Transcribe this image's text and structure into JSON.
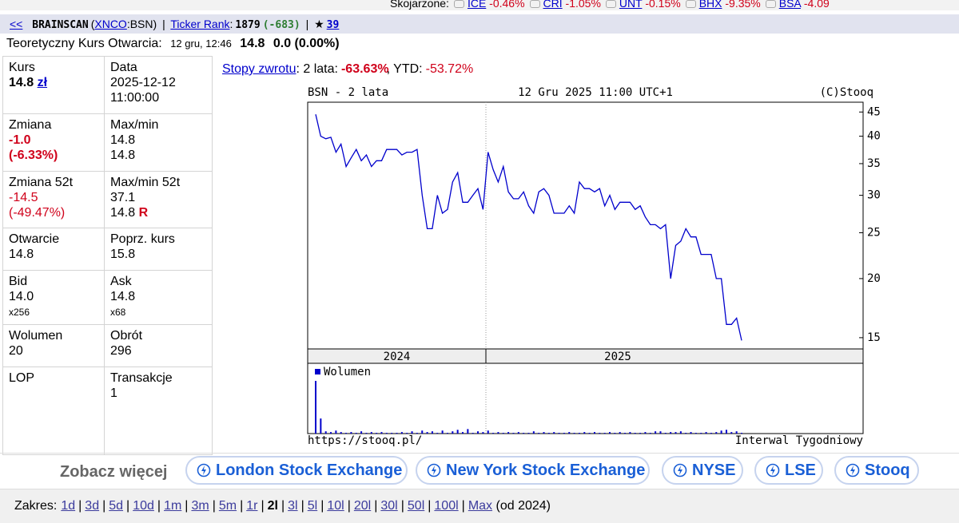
{
  "related": {
    "label": "Skojarzone:",
    "items": [
      {
        "ticker": "ICE",
        "change": "-0.46%"
      },
      {
        "ticker": "CRI",
        "change": "-1.05%"
      },
      {
        "ticker": "UNT",
        "change": "-0.15%"
      },
      {
        "ticker": "BHX",
        "change": "-9.35%"
      },
      {
        "ticker": "BSA",
        "change": "-4.09"
      }
    ]
  },
  "header": {
    "back": "<<",
    "name": "BRAINSCAN",
    "open_paren": "(",
    "exchange": "XNCO",
    "symbol": ":BSN)",
    "separator": "|",
    "rank_link": "Ticker Rank",
    "colon": ":",
    "rank": "1879",
    "rank_change": "(-683)",
    "star": "★",
    "stars": "39"
  },
  "open_line": {
    "label": "Teoretyczny Kurs Otwarcia:",
    "time": "12 gru, 12:46",
    "price": "14.8",
    "change": "0.0 (0.00%)"
  },
  "table": {
    "rows": [
      [
        {
          "label": "Kurs",
          "lines": [
            "14.8",
            "zł"
          ]
        },
        {
          "label": "Data",
          "lines": [
            "2025-12-12",
            "11:00:00"
          ]
        }
      ],
      [
        {
          "label": "Zmiana",
          "lines": [
            "-1.0",
            "(-6.33%)"
          ]
        },
        {
          "label": "Max/min",
          "lines": [
            "14.8",
            "14.8"
          ]
        }
      ],
      [
        {
          "label": "Zmiana 52t",
          "lines": [
            "-14.5",
            "(-49.47%)"
          ]
        },
        {
          "label": "Max/min 52t",
          "lines": [
            "37.1",
            "14.8",
            "R"
          ]
        }
      ],
      [
        {
          "label": "Otwarcie",
          "lines": [
            "14.8"
          ]
        },
        {
          "label": "Poprz. kurs",
          "lines": [
            "15.8"
          ]
        }
      ],
      [
        {
          "label": "Bid",
          "lines": [
            "14.0",
            "x256"
          ]
        },
        {
          "label": "Ask",
          "lines": [
            "14.8",
            "x68"
          ]
        }
      ],
      [
        {
          "label": "Wolumen",
          "lines": [
            "20"
          ]
        },
        {
          "label": "Obrót",
          "lines": [
            "296"
          ]
        }
      ],
      [
        {
          "label": "LOP",
          "lines": []
        },
        {
          "label": "Transakcje",
          "lines": [
            "1"
          ]
        }
      ]
    ]
  },
  "returns": {
    "link": "Stopy zwrotu",
    "period_label": ": 2 lata:",
    "period_value": "-63.63%",
    "ytd_label": ", YTD:",
    "ytd_value": "-53.72%"
  },
  "chart_data": {
    "type": "line",
    "title": "BSN - 2 lata",
    "subtitle": "12 Gru 2025 11:00 UTC+1",
    "copyright": "(C)Stooq",
    "log_scale": true,
    "ylim": [
      14.2,
      47.2
    ],
    "yticks": [
      15,
      20,
      25,
      30,
      35,
      40,
      45
    ],
    "periods": [
      "2024",
      "2025"
    ],
    "series": [
      {
        "color": "#0000cc",
        "values": [
          44.5,
          40,
          39.5,
          39.8,
          37,
          38.5,
          34.5,
          36,
          37.5,
          35.5,
          36.5,
          34.5,
          35.5,
          35.5,
          37.5,
          37.5,
          37.5,
          36.5,
          37,
          37,
          37.5,
          30,
          25.5,
          25.5,
          30,
          27.5,
          28,
          32,
          33.5,
          29,
          29,
          30,
          31,
          28,
          37,
          34,
          32,
          34.5,
          30.5,
          29.5,
          29.5,
          30.5,
          28.5,
          27.5,
          30.5,
          31,
          30,
          27.5,
          27.5,
          27.5,
          28.5,
          27.5,
          32,
          31,
          31,
          30.5,
          31,
          28.5,
          30,
          28,
          29,
          29,
          29,
          28,
          28.5,
          27,
          26,
          26,
          25.5,
          26,
          20,
          23.5,
          24,
          25.5,
          24.5,
          24.5,
          22.5,
          22.5,
          22.5,
          20,
          20,
          16,
          16,
          16.5,
          14.8
        ]
      }
    ],
    "volume": {
      "name": "Wolumen",
      "color": "#0000cc",
      "values": [
        70,
        20,
        3,
        2,
        4,
        2,
        1,
        2,
        1,
        3,
        1,
        2,
        1,
        2,
        1,
        1,
        1,
        2,
        1,
        3,
        1,
        4,
        2,
        3,
        1,
        4,
        1,
        3,
        5,
        2,
        6,
        1,
        3,
        2,
        4,
        1,
        2,
        1,
        2,
        1,
        2,
        1,
        1,
        3,
        1,
        2,
        1,
        2,
        1,
        1,
        2,
        1,
        1,
        2,
        1,
        2,
        1,
        1,
        2,
        1,
        2,
        1,
        2,
        1,
        1,
        2,
        1,
        3,
        3,
        1,
        2,
        2,
        3,
        1,
        2,
        1,
        1,
        2,
        1,
        2,
        4,
        5,
        2,
        3,
        1
      ]
    },
    "footer_left": "https://stooq.pl/",
    "footer_right": "Interwal Tygodniowy"
  },
  "more": {
    "label": "Zobacz więcej",
    "buttons": [
      "London Stock Exchange",
      "New York Stock Exchange",
      "NYSE",
      "LSE",
      "Stooq"
    ]
  },
  "range": {
    "label": "Zakres:",
    "separator": "|",
    "links": [
      "1d",
      "3d",
      "5d",
      "10d",
      "1m",
      "3m",
      "5m",
      "1r",
      "2l",
      "3l",
      "5l",
      "10l",
      "20l",
      "30l",
      "50l",
      "100l",
      "Max"
    ],
    "current": 8,
    "since": "(od 2024)"
  }
}
